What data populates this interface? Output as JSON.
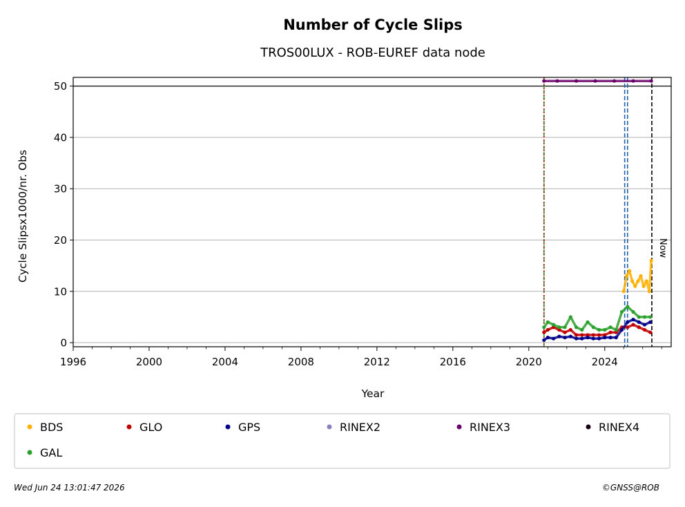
{
  "chart_data": {
    "type": "scatter",
    "title": "Number of Cycle Slips",
    "subtitle": "TROS00LUX - ROB-EUREF data node",
    "xlabel": "Year",
    "ylabel": "Cycle Slipsx1000/nr. Obs",
    "xlim": [
      1996,
      2027.5
    ],
    "ylim": [
      -0.8,
      51.7
    ],
    "x_ticks": [
      1996,
      2000,
      2004,
      2008,
      2012,
      2016,
      2020,
      2024
    ],
    "y_ticks": [
      0,
      10,
      20,
      30,
      40,
      50
    ],
    "grid": "horizontal",
    "reference_line_y": 50,
    "event_lines": [
      {
        "x": 2020.8,
        "color": "#2ca02c",
        "style": "dashed"
      },
      {
        "x": 2020.8,
        "color": "#c00000",
        "style": "dotted"
      },
      {
        "x": 2025.05,
        "color": "#1f5fa8",
        "style": "dashed"
      },
      {
        "x": 2025.2,
        "color": "#1f5fa8",
        "style": "dashed"
      },
      {
        "x": 2026.48,
        "color": "#000000",
        "style": "dashed",
        "label": "Now"
      }
    ],
    "series": [
      {
        "name": "BDS",
        "color": "#ffb000",
        "x": [
          2025.0,
          2025.15,
          2025.3,
          2025.45,
          2025.6,
          2025.75,
          2025.9,
          2026.05,
          2026.2,
          2026.35,
          2026.45
        ],
        "y": [
          10,
          13,
          14,
          12,
          11,
          12,
          13,
          11,
          12,
          10,
          16
        ]
      },
      {
        "name": "GLO",
        "color": "#c00000",
        "x": [
          2020.8,
          2021.0,
          2021.3,
          2021.6,
          2021.9,
          2022.2,
          2022.5,
          2022.8,
          2023.1,
          2023.4,
          2023.7,
          2024.0,
          2024.3,
          2024.6,
          2024.9,
          2025.2,
          2025.5,
          2025.8,
          2026.1,
          2026.4
        ],
        "y": [
          2,
          2.5,
          3,
          2.5,
          2,
          2.5,
          1.5,
          1.5,
          1.5,
          1.5,
          1.5,
          1.5,
          2,
          2,
          3,
          3,
          3.5,
          3,
          2.5,
          2
        ]
      },
      {
        "name": "GPS",
        "color": "#00008b",
        "x": [
          2020.8,
          2021.0,
          2021.3,
          2021.6,
          2021.9,
          2022.2,
          2022.5,
          2022.8,
          2023.1,
          2023.4,
          2023.7,
          2024.0,
          2024.3,
          2024.6,
          2024.9,
          2025.2,
          2025.5,
          2025.8,
          2026.1,
          2026.4
        ],
        "y": [
          0.5,
          1,
          0.8,
          1.2,
          1,
          1.2,
          0.8,
          0.8,
          1,
          0.8,
          0.8,
          1,
          1,
          1,
          2.5,
          4,
          4.5,
          4,
          3.5,
          4
        ]
      },
      {
        "name": "RINEX2",
        "color": "#8c7fc0",
        "x": [],
        "y": []
      },
      {
        "name": "RINEX3",
        "color": "#6a006a",
        "x": [
          2020.8,
          2021.5,
          2022.5,
          2023.5,
          2024.5,
          2025.5,
          2026.45
        ],
        "y": [
          51,
          51,
          51,
          51,
          51,
          51,
          51
        ]
      },
      {
        "name": "RINEX4",
        "color": "#1a0010",
        "x": [],
        "y": []
      },
      {
        "name": "GAL",
        "color": "#2ca02c",
        "x": [
          2020.8,
          2021.0,
          2021.3,
          2021.6,
          2021.9,
          2022.2,
          2022.5,
          2022.8,
          2023.1,
          2023.4,
          2023.7,
          2024.0,
          2024.3,
          2024.6,
          2024.9,
          2025.2,
          2025.5,
          2025.8,
          2026.1,
          2026.4
        ],
        "y": [
          3,
          4,
          3.5,
          3,
          3,
          5,
          3,
          2.5,
          4,
          3,
          2.5,
          2.5,
          3,
          2.5,
          6,
          7,
          6,
          5,
          5,
          5
        ]
      }
    ]
  },
  "footer": {
    "timestamp": "Wed Jun 24 13:01:47 2026",
    "credit": "©GNSS@ROB"
  },
  "now_label": "Now"
}
